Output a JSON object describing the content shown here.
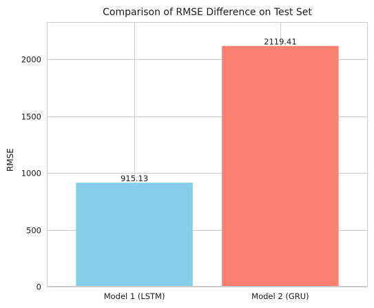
{
  "chart_data": {
    "type": "bar",
    "title": "Comparison of RMSE Difference on Test Set",
    "xlabel": "",
    "ylabel": "RMSE",
    "categories": [
      "Model 1 (LSTM)",
      "Model 2 (GRU)"
    ],
    "values": [
      915.13,
      2119.41
    ],
    "value_labels": [
      "915.13",
      "2119.41"
    ],
    "colors": [
      "#87CEEB",
      "#FA8072"
    ],
    "ylim": [
      0,
      2330
    ],
    "yticks": [
      0,
      500,
      1000,
      1500,
      2000
    ],
    "grid": true,
    "legend": "none"
  }
}
